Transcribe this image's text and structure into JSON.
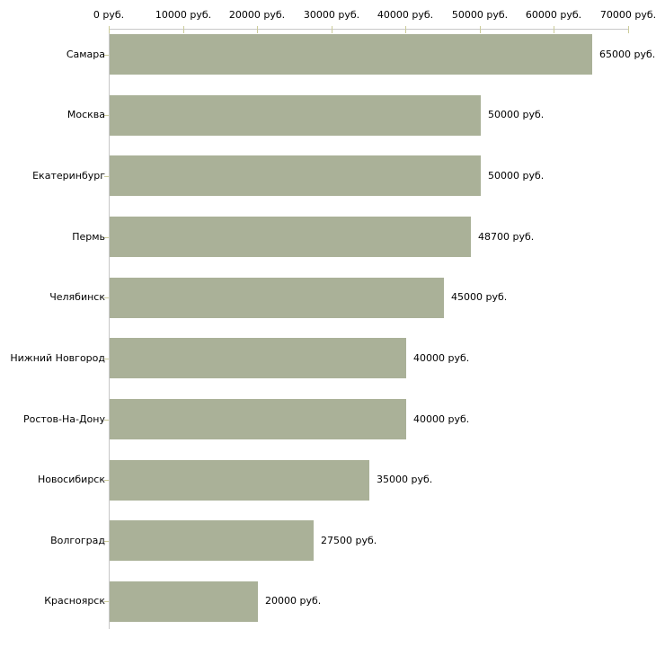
{
  "chart_data": {
    "type": "bar",
    "orientation": "horizontal",
    "unit": "руб.",
    "categories": [
      "Самара",
      "Москва",
      "Екатеринбург",
      "Пермь",
      "Челябинск",
      "Нижний Новгород",
      "Ростов-На-Дону",
      "Новосибирск",
      "Волгоград",
      "Красноярск"
    ],
    "values": [
      65000,
      50000,
      50000,
      48700,
      45000,
      40000,
      40000,
      35000,
      27500,
      20000
    ],
    "value_labels": [
      "65000 руб.",
      "50000 руб.",
      "50000 руб.",
      "48700 руб.",
      "45000 руб.",
      "40000 руб.",
      "40000 руб.",
      "35000 руб.",
      "27500 руб.",
      "20000 руб."
    ],
    "x_axis": {
      "position": "top",
      "min": 0,
      "max": 70000,
      "tick_interval": 10000,
      "ticks": [
        0,
        10000,
        20000,
        30000,
        40000,
        50000,
        60000,
        70000
      ],
      "tick_labels": [
        "0 руб.",
        "10000 руб.",
        "20000 руб.",
        "30000 руб.",
        "40000 руб.",
        "50000 руб.",
        "60000 руб.",
        "70000 руб."
      ]
    },
    "grid": "off",
    "legend": "none",
    "colors": {
      "bar": "#aab198",
      "axis_line": "#c8c8c8",
      "tick": "#cccc99",
      "text": "#000000",
      "background": "#ffffff"
    }
  }
}
